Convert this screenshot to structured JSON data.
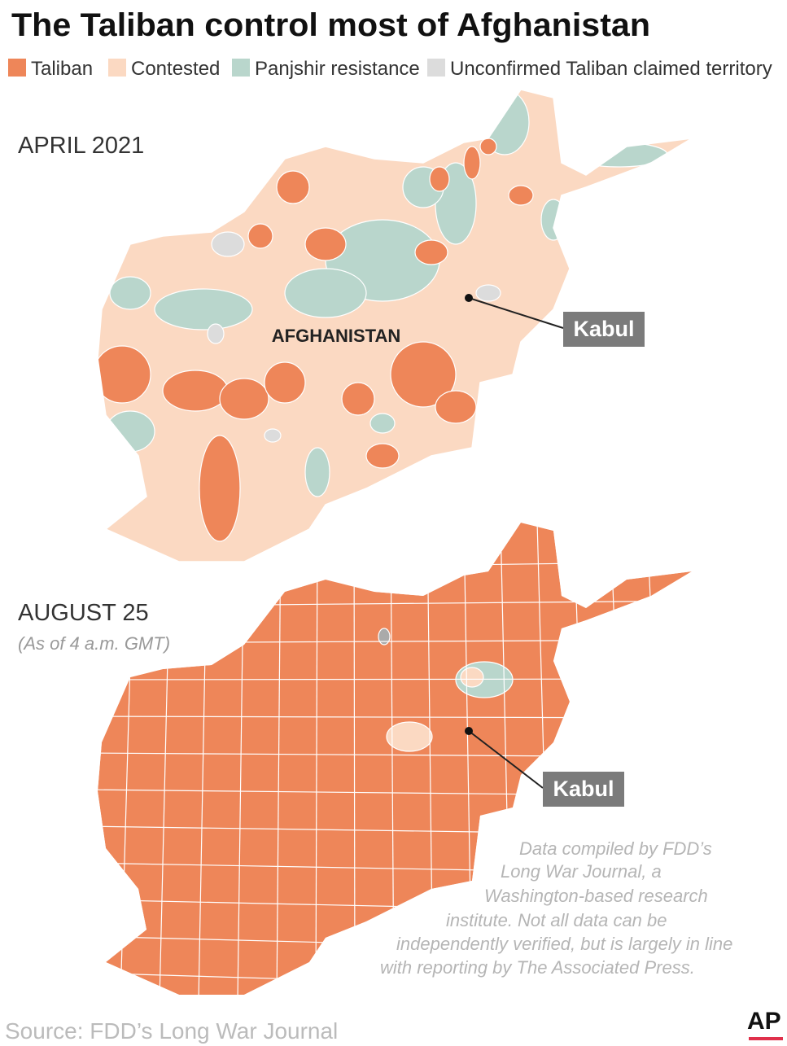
{
  "title": "The Taliban control most of Afghanistan",
  "legend": [
    {
      "label": "Taliban",
      "color": "#ee8659"
    },
    {
      "label": "Contested",
      "color": "#fbd9c2"
    },
    {
      "label": "Panjshir resistance",
      "color": "#b9d6cc"
    },
    {
      "label": "Unconfirmed Taliban claimed territory",
      "color": "#dcdcdc"
    }
  ],
  "maps": [
    {
      "label": "APRIL 2021",
      "country_label": "AFGHANISTAN",
      "city_label": "Kabul"
    },
    {
      "label": "AUGUST 25",
      "note": "(As of 4 a.m. GMT)",
      "city_label": "Kabul"
    }
  ],
  "credit_note": [
    "Data compiled by FDD’s",
    "Long War Journal, a",
    "Washington-based research",
    "institute. Not all data can be",
    "independently verified, but is largely in line",
    "with reporting by The Associated Press."
  ],
  "source": "Source: FDD’s Long War Journal",
  "logo": "AP"
}
